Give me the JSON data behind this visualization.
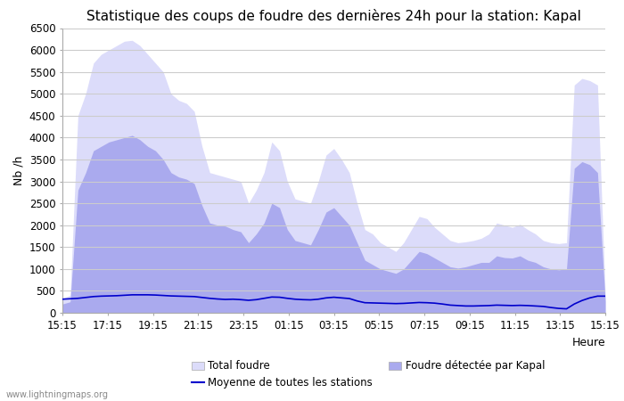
{
  "title": "Statistique des coups de foudre des dernières 24h pour la station: Kapal",
  "ylabel": "Nb /h",
  "xlabel": "Heure",
  "watermark": "www.lightningmaps.org",
  "xtick_labels": [
    "15:15",
    "17:15",
    "19:15",
    "21:15",
    "23:15",
    "01:15",
    "03:15",
    "05:15",
    "07:15",
    "09:15",
    "11:15",
    "13:15",
    "15:15"
  ],
  "ylim": [
    0,
    6500
  ],
  "yticks": [
    0,
    500,
    1000,
    1500,
    2000,
    2500,
    3000,
    3500,
    4000,
    4500,
    5000,
    5500,
    6000,
    6500
  ],
  "color_total": "#dcdcfa",
  "color_kapal": "#aaaaee",
  "color_mean": "#0000cc",
  "color_bg": "#ffffff",
  "color_grid": "#cccccc",
  "total_foudre": [
    330,
    400,
    4500,
    5000,
    5700,
    5900,
    6000,
    6100,
    6200,
    6220,
    6100,
    5900,
    5700,
    5500,
    5000,
    4850,
    4780,
    4600,
    3800,
    3200,
    3150,
    3100,
    3050,
    3000,
    2500,
    2800,
    3200,
    3900,
    3700,
    3000,
    2600,
    2550,
    2500,
    3000,
    3600,
    3750,
    3500,
    3200,
    2500,
    1900,
    1800,
    1600,
    1500,
    1400,
    1600,
    1900,
    2200,
    2150,
    1950,
    1800,
    1650,
    1600,
    1620,
    1650,
    1700,
    1800,
    2050,
    2000,
    1950,
    2020,
    1900,
    1800,
    1650,
    1600,
    1580,
    1600,
    5200,
    5350,
    5300,
    5200,
    400
  ],
  "kapal_foudre": [
    200,
    250,
    2800,
    3200,
    3700,
    3800,
    3900,
    3950,
    4000,
    4050,
    3950,
    3800,
    3700,
    3500,
    3200,
    3100,
    3050,
    2950,
    2450,
    2050,
    2000,
    1980,
    1900,
    1850,
    1600,
    1800,
    2050,
    2500,
    2400,
    1900,
    1650,
    1600,
    1550,
    1900,
    2300,
    2400,
    2200,
    2000,
    1600,
    1200,
    1100,
    1000,
    950,
    900,
    1000,
    1200,
    1400,
    1350,
    1250,
    1150,
    1050,
    1020,
    1050,
    1100,
    1150,
    1150,
    1300,
    1260,
    1250,
    1300,
    1200,
    1150,
    1050,
    1000,
    980,
    1000,
    3300,
    3450,
    3380,
    3200,
    260
  ],
  "mean_line": [
    310,
    320,
    330,
    350,
    370,
    380,
    385,
    390,
    400,
    410,
    410,
    410,
    405,
    395,
    385,
    380,
    375,
    370,
    350,
    330,
    315,
    305,
    310,
    300,
    285,
    300,
    330,
    360,
    355,
    330,
    310,
    300,
    295,
    310,
    340,
    355,
    340,
    325,
    270,
    230,
    225,
    220,
    215,
    210,
    215,
    225,
    235,
    230,
    220,
    200,
    175,
    165,
    155,
    155,
    160,
    165,
    175,
    170,
    165,
    170,
    165,
    155,
    145,
    120,
    100,
    90,
    200,
    280,
    340,
    380,
    380
  ],
  "n_points": 71,
  "title_fontsize": 11,
  "label_fontsize": 9,
  "tick_fontsize": 8.5,
  "legend_row1": [
    "Total foudre",
    "Moyenne de toutes les stations"
  ],
  "legend_row2": [
    "Foudre détectée par Kapal"
  ]
}
